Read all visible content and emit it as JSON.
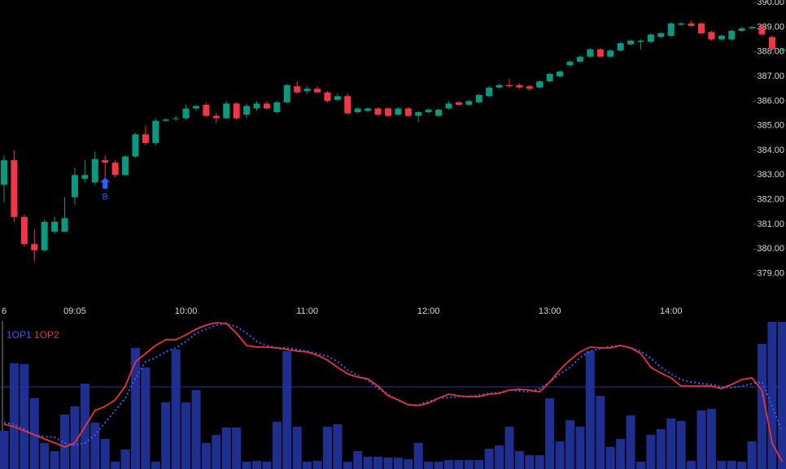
{
  "chart_data": [
    {
      "type": "candlestick",
      "up_color": "#089981",
      "down_color": "#f23645",
      "categories": [
        "6",
        null,
        null,
        null,
        null,
        null,
        null,
        "09:05",
        null,
        null,
        null,
        null,
        null,
        null,
        null,
        null,
        null,
        null,
        "10:00",
        null,
        null,
        null,
        null,
        null,
        null,
        null,
        null,
        null,
        null,
        null,
        "11:00",
        null,
        null,
        null,
        null,
        null,
        null,
        null,
        null,
        null,
        null,
        null,
        "12:00",
        null,
        null,
        null,
        null,
        null,
        null,
        null,
        null,
        null,
        null,
        null,
        "13:00",
        null,
        null,
        null,
        null,
        null,
        null,
        null,
        null,
        null,
        null,
        null,
        "14:00",
        null,
        null,
        null,
        null,
        null,
        null,
        null,
        null,
        null,
        null,
        null
      ],
      "ohlc": [
        [
          382.6,
          383.8,
          381.9,
          383.6
        ],
        [
          383.6,
          384.0,
          381.1,
          381.3
        ],
        [
          381.3,
          381.4,
          380.1,
          380.2
        ],
        [
          380.2,
          380.8,
          379.5,
          379.95
        ],
        [
          379.95,
          381.2,
          379.9,
          381.1
        ],
        [
          380.7,
          381.3,
          380.6,
          381.1
        ],
        [
          380.7,
          382.1,
          380.7,
          381.25
        ],
        [
          382.1,
          383.3,
          381.8,
          383.0
        ],
        [
          382.85,
          383.6,
          382.7,
          383.0
        ],
        [
          382.7,
          383.95,
          382.6,
          383.65
        ],
        [
          383.6,
          383.8,
          382.7,
          383.5
        ],
        [
          383.5,
          383.6,
          382.9,
          383.0
        ],
        [
          383.0,
          383.8,
          382.95,
          383.75
        ],
        [
          383.75,
          384.7,
          383.7,
          384.65
        ],
        [
          384.65,
          385.0,
          384.2,
          384.3
        ],
        [
          384.3,
          385.3,
          384.2,
          385.2
        ],
        [
          385.2,
          385.3,
          385.15,
          385.25
        ],
        [
          385.3,
          385.4,
          385.2,
          385.3
        ],
        [
          385.3,
          385.85,
          385.25,
          385.7
        ],
        [
          385.7,
          385.85,
          385.6,
          385.8
        ],
        [
          385.85,
          385.95,
          385.35,
          385.4
        ],
        [
          385.4,
          385.5,
          385.1,
          385.3
        ],
        [
          385.3,
          386.0,
          385.3,
          385.9
        ],
        [
          385.9,
          385.95,
          385.25,
          385.3
        ],
        [
          385.45,
          385.9,
          385.3,
          385.8
        ],
        [
          385.7,
          386.0,
          385.6,
          385.9
        ],
        [
          385.9,
          386.0,
          385.65,
          385.7
        ],
        [
          385.55,
          386.0,
          385.5,
          385.95
        ],
        [
          385.95,
          386.7,
          385.9,
          386.65
        ],
        [
          386.6,
          386.8,
          386.3,
          386.35
        ],
        [
          386.4,
          386.6,
          386.3,
          386.5
        ],
        [
          386.5,
          386.6,
          386.3,
          386.35
        ],
        [
          386.35,
          386.4,
          385.95,
          386.0
        ],
        [
          386.05,
          386.3,
          386.0,
          386.2
        ],
        [
          386.2,
          386.3,
          385.45,
          385.5
        ],
        [
          385.55,
          385.75,
          385.5,
          385.7
        ],
        [
          385.6,
          385.75,
          385.55,
          385.7
        ],
        [
          385.7,
          385.75,
          385.4,
          385.45
        ],
        [
          385.7,
          385.75,
          385.35,
          385.4
        ],
        [
          385.45,
          385.75,
          385.4,
          385.7
        ],
        [
          385.7,
          385.75,
          385.35,
          385.4
        ],
        [
          385.4,
          385.6,
          385.15,
          385.55
        ],
        [
          385.55,
          385.7,
          385.5,
          385.65
        ],
        [
          385.4,
          385.7,
          385.35,
          385.65
        ],
        [
          385.7,
          386.0,
          385.65,
          385.9
        ],
        [
          385.95,
          386.0,
          385.8,
          385.85
        ],
        [
          385.85,
          386.05,
          385.8,
          386.0
        ],
        [
          385.95,
          386.3,
          385.9,
          386.25
        ],
        [
          386.2,
          386.6,
          386.15,
          386.55
        ],
        [
          386.55,
          386.7,
          386.5,
          386.65
        ],
        [
          386.65,
          386.9,
          386.55,
          386.6
        ],
        [
          386.65,
          386.7,
          386.5,
          386.55
        ],
        [
          386.6,
          386.65,
          386.4,
          386.5
        ],
        [
          386.55,
          386.85,
          386.5,
          386.8
        ],
        [
          386.8,
          387.15,
          386.75,
          387.1
        ],
        [
          387.0,
          387.25,
          386.95,
          387.2
        ],
        [
          387.45,
          387.65,
          387.4,
          387.6
        ],
        [
          387.6,
          387.85,
          387.55,
          387.8
        ],
        [
          387.8,
          388.15,
          387.75,
          388.1
        ],
        [
          388.1,
          388.15,
          387.75,
          387.8
        ],
        [
          387.8,
          388.1,
          387.75,
          388.05
        ],
        [
          388.05,
          388.4,
          388.0,
          388.35
        ],
        [
          388.3,
          388.5,
          388.25,
          388.45
        ],
        [
          388.4,
          388.5,
          388.1,
          388.45
        ],
        [
          388.4,
          388.75,
          388.35,
          388.7
        ],
        [
          388.6,
          388.8,
          388.55,
          388.75
        ],
        [
          388.65,
          389.2,
          388.6,
          389.15
        ],
        [
          389.1,
          389.2,
          389.05,
          389.15
        ],
        [
          389.15,
          389.25,
          389.0,
          389.05
        ],
        [
          389.15,
          389.2,
          388.7,
          388.75
        ],
        [
          388.8,
          388.85,
          388.45,
          388.5
        ],
        [
          388.5,
          388.7,
          388.45,
          388.65
        ],
        [
          388.5,
          388.9,
          388.45,
          388.85
        ],
        [
          388.85,
          389.0,
          388.8,
          388.95
        ],
        [
          388.95,
          389.05,
          388.9,
          389.0
        ],
        [
          389.0,
          389.1,
          388.65,
          388.7
        ],
        [
          388.6,
          388.65,
          388.05,
          388.1
        ],
        [
          388.05,
          388.15,
          388.0,
          388.1
        ]
      ],
      "markers": [
        {
          "index": 10,
          "label": "B",
          "color": "#2962ff"
        }
      ],
      "ylim": [
        377.9,
        390.1
      ],
      "yticks": [
        {
          "value": 379,
          "label": "379.00"
        },
        {
          "value": 380,
          "label": "380.00"
        },
        {
          "value": 381,
          "label": "381.00"
        },
        {
          "value": 382,
          "label": "382.00"
        },
        {
          "value": 383,
          "label": "383.00"
        },
        {
          "value": 384,
          "label": "384.00"
        },
        {
          "value": 385,
          "label": "385.00"
        },
        {
          "value": 386,
          "label": "386.00"
        },
        {
          "value": 387,
          "label": "387.00"
        },
        {
          "value": 388,
          "label": "388.00"
        },
        {
          "value": 389,
          "label": "389.00"
        },
        {
          "value": 390,
          "label": "390.00"
        }
      ]
    },
    {
      "type": "indicator",
      "bar_color": "#1f2f8f",
      "bars": [
        40,
        123,
        122,
        80,
        25,
        15,
        60,
        70,
        98,
        50,
        30,
        2,
        17,
        142,
        118,
        2,
        75,
        140,
        75,
        90,
        25,
        35,
        44,
        44,
        2,
        3,
        2,
        51,
        138,
        45,
        2,
        3,
        45,
        48,
        2,
        15,
        8,
        8,
        7,
        7,
        5,
        25,
        2,
        2,
        4,
        4,
        4,
        4,
        18,
        22,
        45,
        15,
        10,
        10,
        80,
        27,
        53,
        45,
        138,
        83,
        20,
        30,
        59,
        2,
        35,
        42,
        55,
        52,
        3,
        65,
        67,
        3,
        3,
        2,
        27,
        147,
        174,
        174
      ],
      "level": 94,
      "ylim": [
        0,
        175
      ],
      "series": [
        {
          "name": "1OP1",
          "color": "#3a5cff",
          "dashed": true,
          "values": [
            50,
            48,
            42,
            35,
            33,
            32,
            25,
            22,
            25,
            35,
            50,
            65,
            80,
            105,
            125,
            130,
            137,
            142,
            150,
            160,
            165,
            170,
            172,
            168,
            160,
            150,
            145,
            142,
            142,
            140,
            138,
            135,
            132,
            125,
            115,
            108,
            102,
            92,
            85,
            77,
            72,
            72,
            76,
            80,
            81,
            82,
            82,
            84,
            86,
            87,
            90,
            89,
            88,
            92,
            100,
            110,
            118,
            130,
            138,
            141,
            144,
            145,
            142,
            138,
            129,
            118,
            110,
            103,
            100,
            98,
            97,
            94,
            93,
            95,
            98,
            100,
            70,
            40
          ]
        },
        {
          "name": "1OP2",
          "color": "#e8323c",
          "dashed": false,
          "values": [
            48,
            45,
            40,
            35,
            30,
            25,
            20,
            25,
            45,
            65,
            70,
            78,
            95,
            125,
            135,
            145,
            152,
            152,
            158,
            165,
            170,
            173,
            172,
            160,
            145,
            143,
            143,
            142,
            140,
            138,
            137,
            133,
            127,
            118,
            110,
            106,
            104,
            95,
            83,
            78,
            72,
            71,
            74,
            80,
            85,
            83,
            82,
            82,
            85,
            86,
            90,
            91,
            90,
            88,
            100,
            115,
            127,
            137,
            143,
            142,
            142,
            145,
            142,
            135,
            118,
            111,
            105,
            95,
            95,
            95,
            95,
            92,
            97,
            103,
            105,
            90,
            25,
            2
          ]
        }
      ]
    }
  ]
}
